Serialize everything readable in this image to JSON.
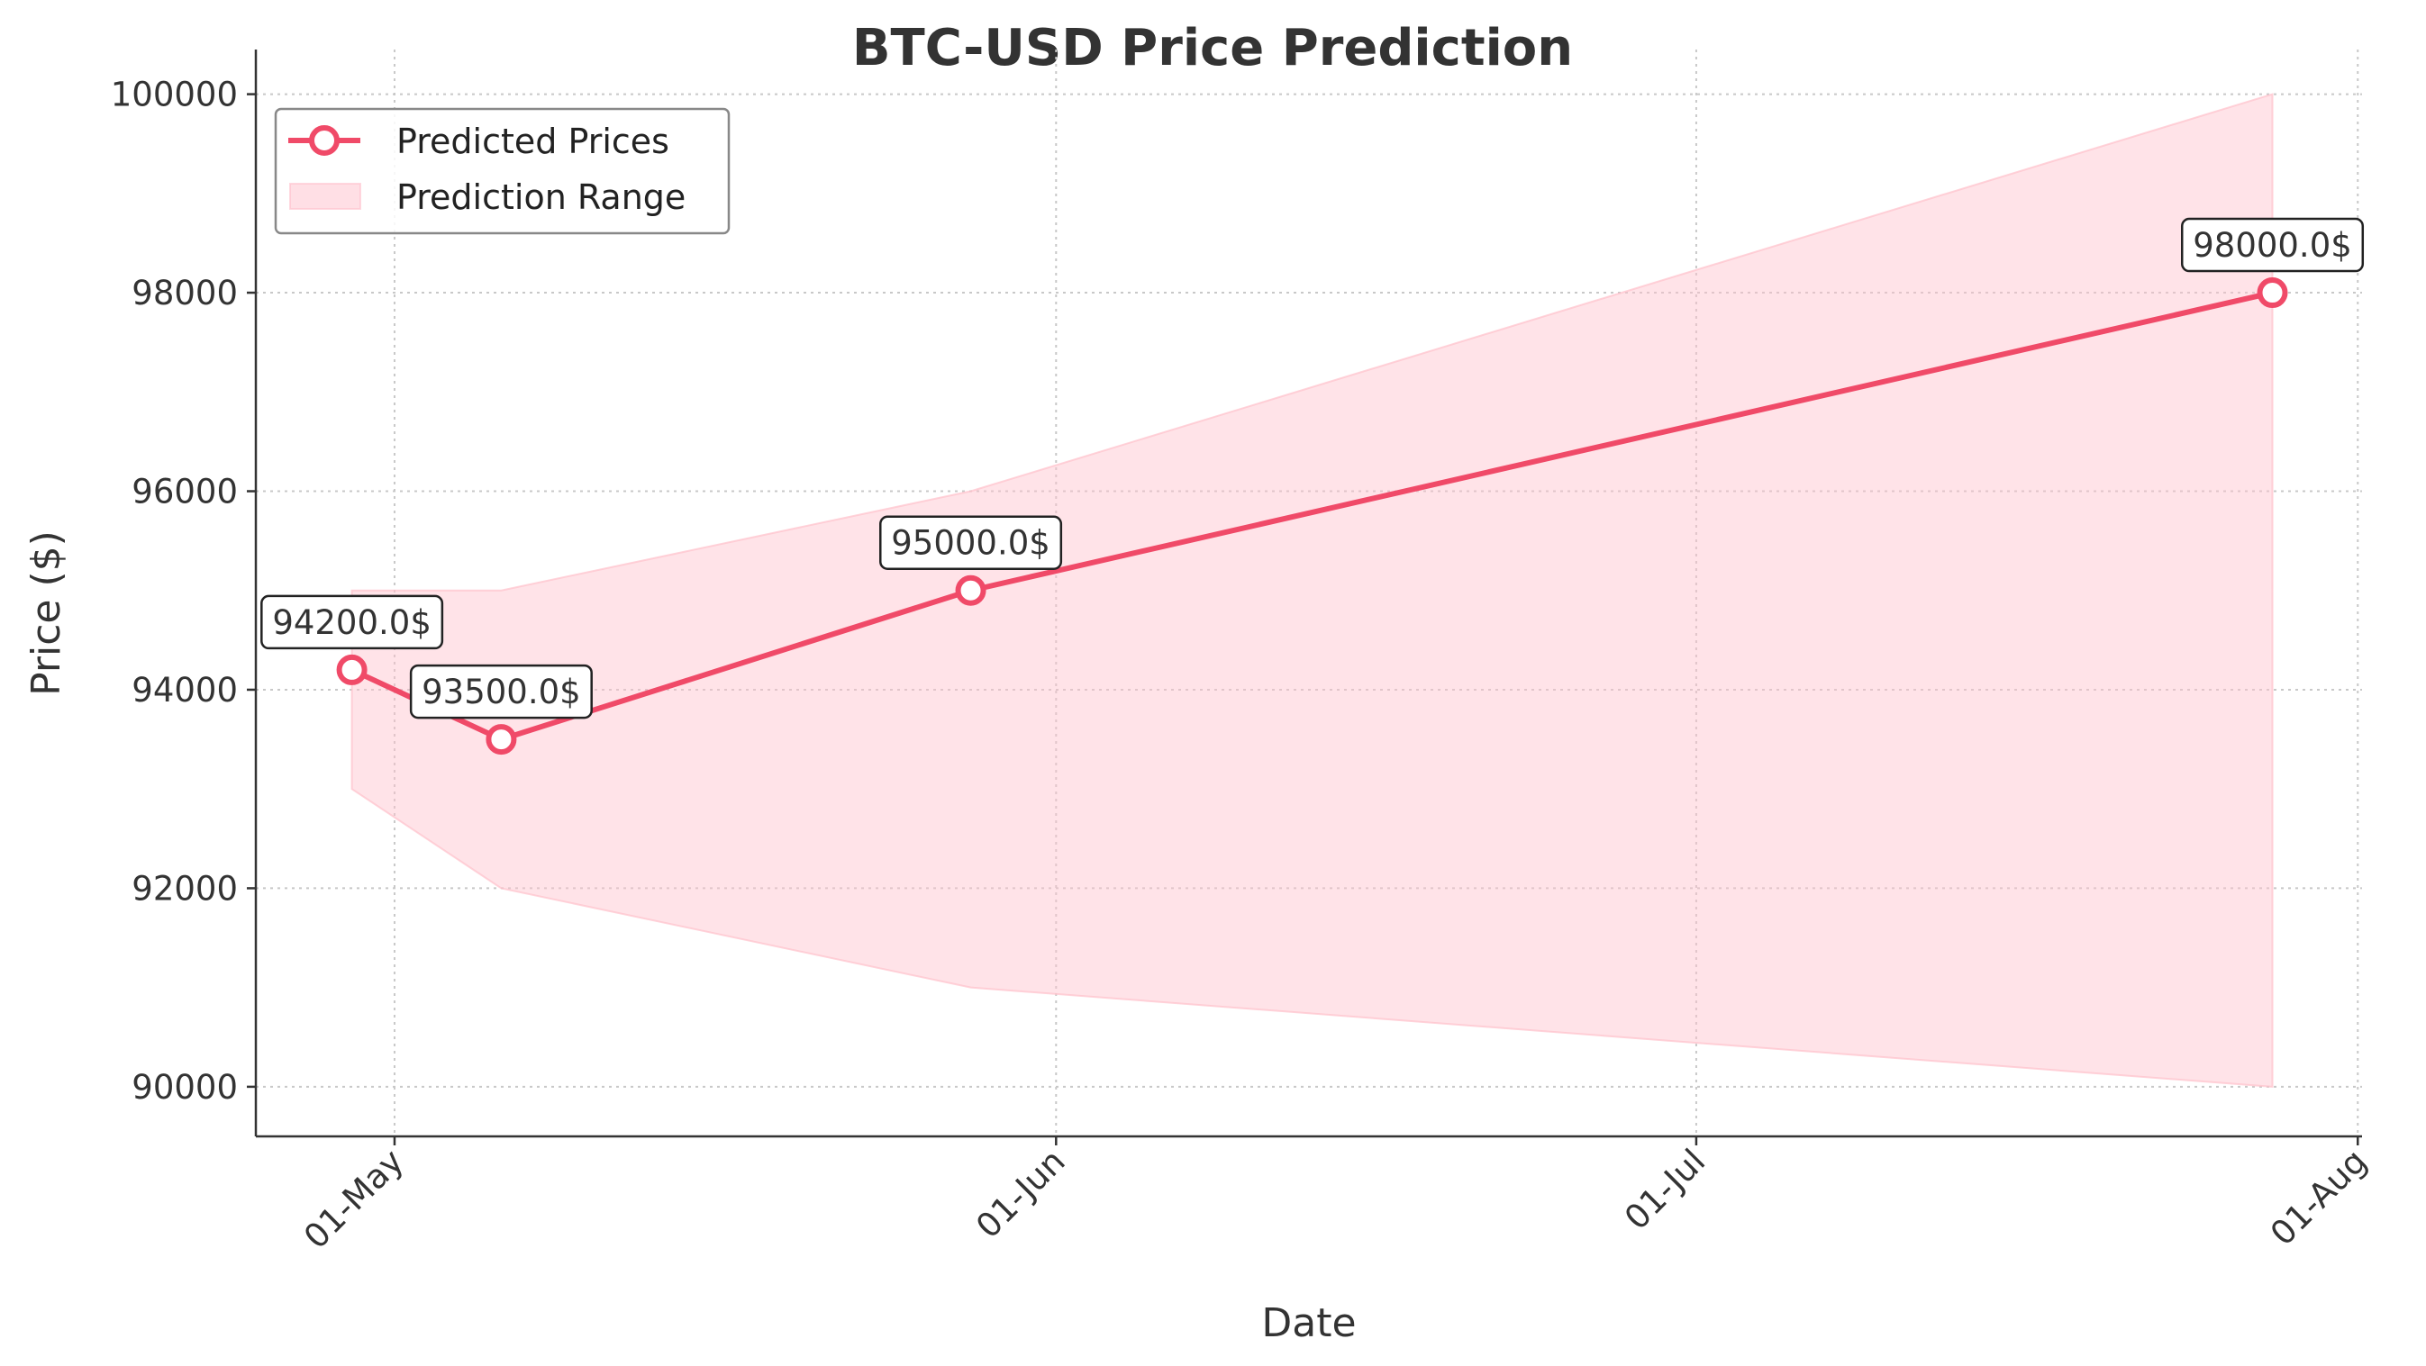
{
  "chart_data": {
    "type": "line",
    "title": "BTC-USD Price Prediction",
    "xlabel": "Date",
    "ylabel": "Price ($)",
    "x_ticks": [
      {
        "label": "01-May",
        "day": 0
      },
      {
        "label": "01-Jun",
        "day": 31
      },
      {
        "label": "01-Jul",
        "day": 61
      },
      {
        "label": "01-Aug",
        "day": 92
      }
    ],
    "y_ticks": [
      90000,
      92000,
      94000,
      96000,
      98000,
      100000
    ],
    "xlim_days": [
      -6.5,
      92.2
    ],
    "ylim": [
      89500,
      100450
    ],
    "grid": true,
    "legend_position": "top-left",
    "series": [
      {
        "name": "Predicted Prices",
        "color": "#f04a68",
        "points": [
          {
            "date": "2025-04-29",
            "day": -2,
            "value": 94200,
            "label": "94200.0$"
          },
          {
            "date": "2025-05-06",
            "day": 5,
            "value": 93500,
            "label": "93500.0$"
          },
          {
            "date": "2025-05-28",
            "day": 27,
            "value": 95000,
            "label": "95000.0$"
          },
          {
            "date": "2025-07-28",
            "day": 88,
            "value": 98000,
            "label": "98000.0$"
          }
        ]
      }
    ],
    "range": {
      "name": "Prediction Range",
      "color": "#ffc0cb",
      "lower": [
        93000,
        92000,
        91000,
        90000
      ],
      "upper": [
        95000,
        95000,
        96000,
        100000
      ]
    }
  }
}
